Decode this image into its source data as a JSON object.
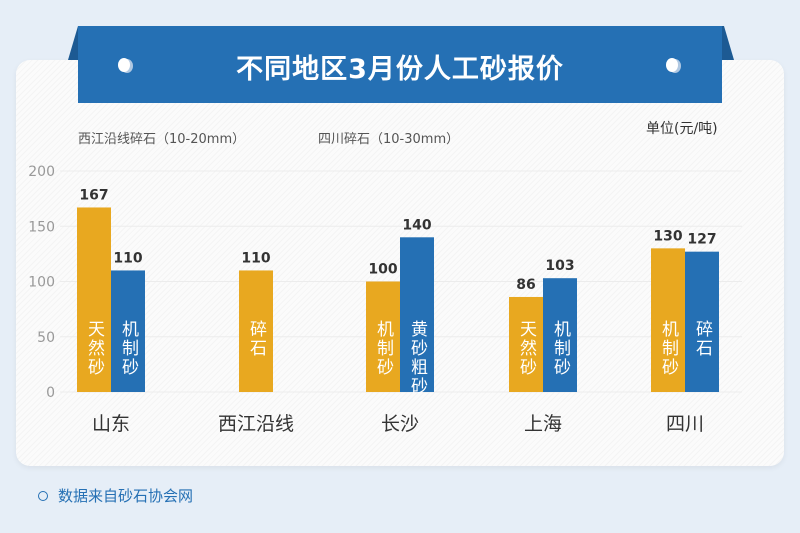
{
  "title": "不同地区3月份人工砂报价",
  "unit": "单位(元/吨)",
  "source": "数据来自砂石协会网",
  "colors": {
    "series1": "#e8a820",
    "series2": "#2570b4",
    "banner": "#2570b4"
  },
  "chart_data": {
    "type": "bar",
    "title": "不同地区3月份人工砂报价",
    "ylabel": "单位(元/吨)",
    "ylim": [
      0,
      200
    ],
    "yticks": [
      0,
      50,
      100,
      150,
      200
    ],
    "grid": true,
    "legend": "top-left",
    "categories": [
      "山东",
      "西江沿线",
      "长沙",
      "上海",
      "四川"
    ],
    "series": [
      {
        "name": "西江沿线碎石（10-20mm）",
        "values": [
          167,
          110,
          100,
          86,
          130
        ],
        "bar_labels": [
          "天然砂",
          "碎石",
          "机制砂",
          "天然砂",
          "机制砂"
        ]
      },
      {
        "name": "四川碎石（10-30mm）",
        "values": [
          110,
          null,
          140,
          103,
          127
        ],
        "bar_labels": [
          "机制砂",
          null,
          "黄砂粗砂",
          "机制砂",
          "碎石"
        ]
      }
    ]
  }
}
